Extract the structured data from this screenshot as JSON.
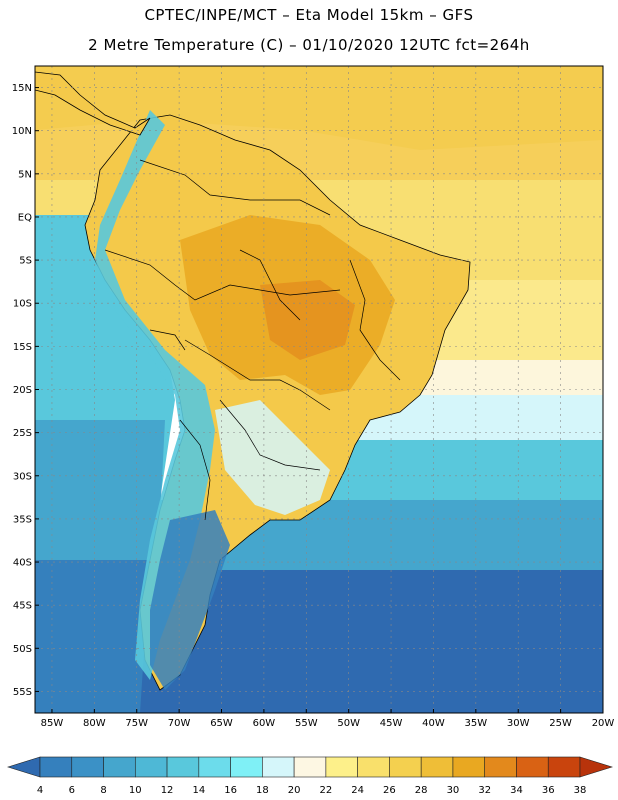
{
  "header": {
    "line1": "CPTEC/INPE/MCT –  Eta Model 15km – GFS",
    "line2": "2 Metre Temperature (C) – 01/10/2020 12UTC fct=264h"
  },
  "map": {
    "lat_ticks": [
      "15N",
      "10N",
      "5N",
      "EQ",
      "5S",
      "10S",
      "15S",
      "20S",
      "25S",
      "30S",
      "35S",
      "40S",
      "45S",
      "50S",
      "55S"
    ],
    "lon_ticks": [
      "85W",
      "80W",
      "75W",
      "70W",
      "65W",
      "60W",
      "55W",
      "50W",
      "45W",
      "40W",
      "35W",
      "30W",
      "25W",
      "20W"
    ],
    "lat_range": [
      17.5,
      -57.5
    ],
    "lon_range": [
      -87,
      -20
    ],
    "grid": true
  },
  "colorbar": {
    "labels": [
      "4",
      "6",
      "8",
      "10",
      "12",
      "14",
      "16",
      "18",
      "20",
      "22",
      "24",
      "26",
      "28",
      "30",
      "32",
      "34",
      "36",
      "38"
    ],
    "colors": [
      "#2f6ab0",
      "#3580bd",
      "#3b91c6",
      "#45a6cd",
      "#4eb8d6",
      "#59c8dc",
      "#6cdceb",
      "#7ff0f6",
      "#d5f6fa",
      "#fdf7e3",
      "#fdf08a",
      "#f9e06b",
      "#f4d04f",
      "#efbe37",
      "#e9a821",
      "#e3891c",
      "#d96214",
      "#c9440d",
      "#b8330b"
    ]
  }
}
